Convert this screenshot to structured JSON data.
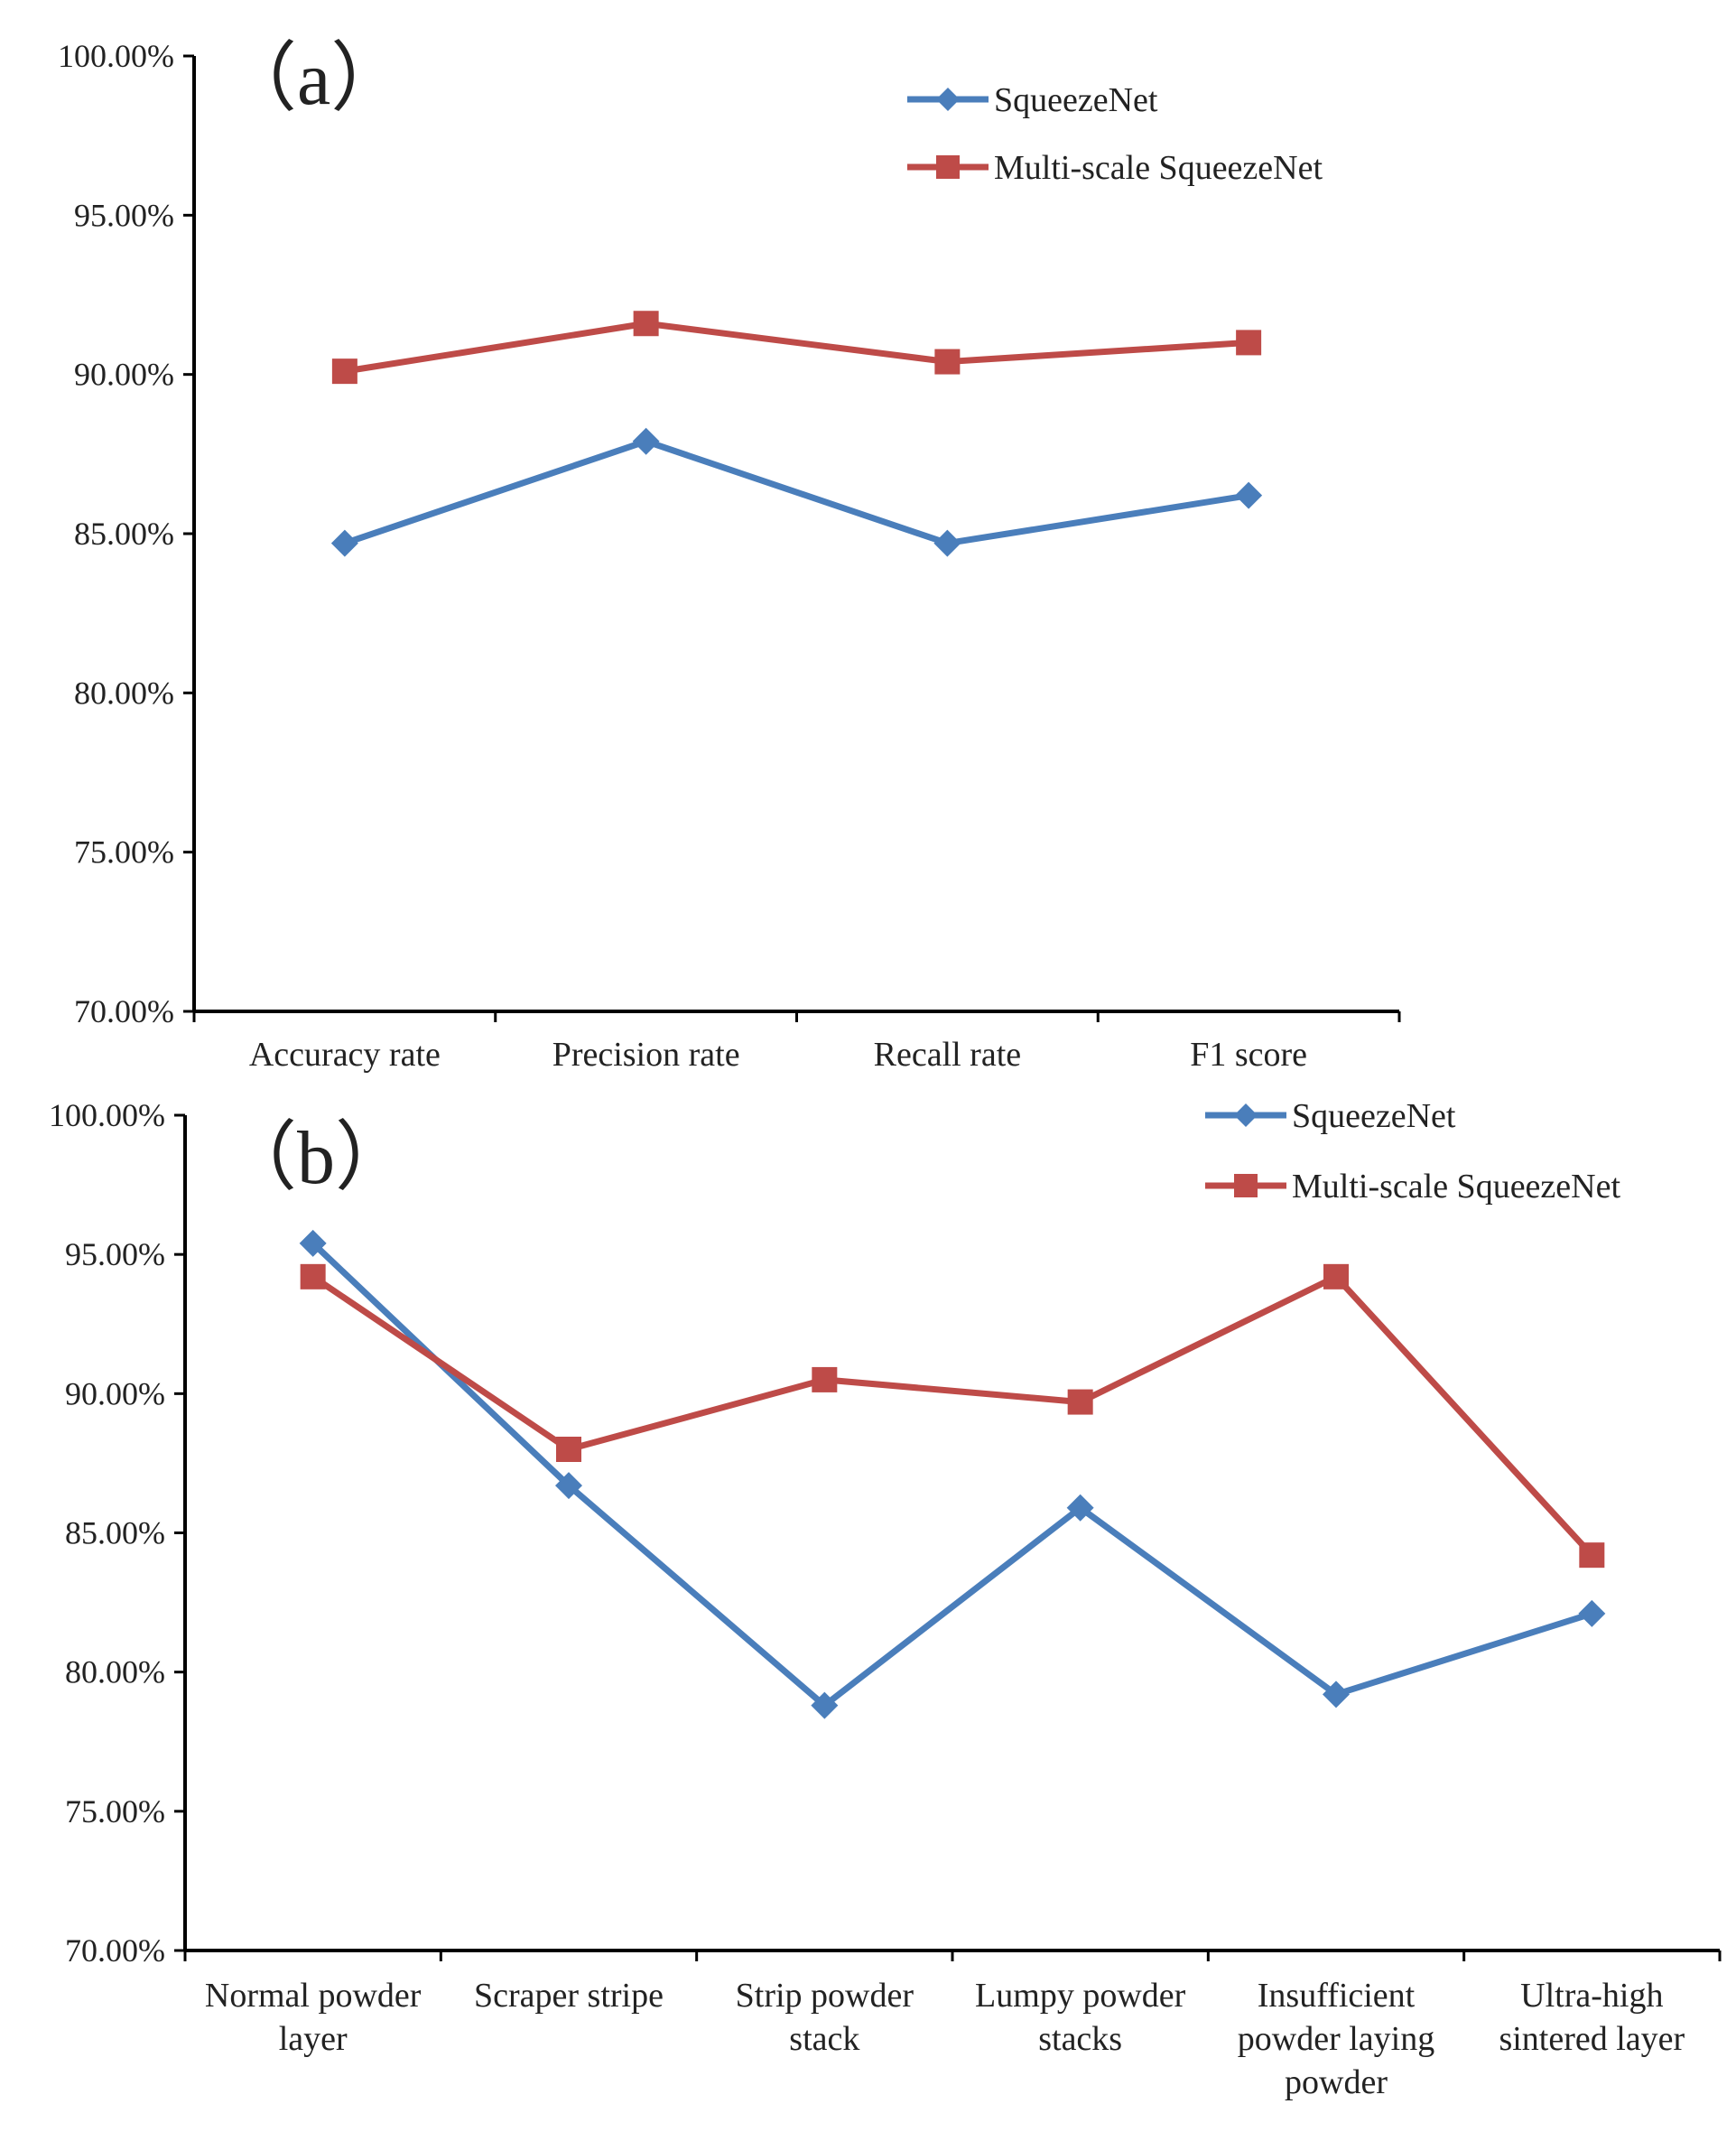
{
  "colors": {
    "squeezenet": "#4a7ebb",
    "multiscale": "#be4b48",
    "axis": "#000000"
  },
  "chart_data": [
    {
      "type": "line",
      "panel_label": "（a）",
      "categories": [
        {
          "lines": [
            "Accuracy rate"
          ]
        },
        {
          "lines": [
            "Precision rate"
          ]
        },
        {
          "lines": [
            "Recall rate"
          ]
        },
        {
          "lines": [
            "F1 score"
          ]
        }
      ],
      "series": [
        {
          "name": "SqueezeNet",
          "marker": "diamond",
          "color": "#4a7ebb",
          "values": [
            84.7,
            87.9,
            84.7,
            86.2
          ]
        },
        {
          "name": "Multi-scale SqueezeNet",
          "marker": "square",
          "color": "#be4b48",
          "values": [
            90.1,
            91.6,
            90.4,
            91.0
          ]
        }
      ],
      "ylim": [
        70,
        100
      ],
      "yticks": [
        "70.00%",
        "75.00%",
        "80.00%",
        "85.00%",
        "90.00%",
        "95.00%",
        "100.00%"
      ],
      "grid": false,
      "legend": "top-right"
    },
    {
      "type": "line",
      "panel_label": "（b）",
      "categories": [
        {
          "lines": [
            "Normal powder",
            "layer"
          ]
        },
        {
          "lines": [
            "Scraper stripe"
          ]
        },
        {
          "lines": [
            "Strip powder",
            "stack"
          ]
        },
        {
          "lines": [
            "Lumpy powder",
            "stacks"
          ]
        },
        {
          "lines": [
            "Insufficient",
            "powder laying",
            "powder"
          ]
        },
        {
          "lines": [
            "Ultra-high",
            "sintered layer"
          ]
        }
      ],
      "series": [
        {
          "name": "SqueezeNet",
          "marker": "diamond",
          "color": "#4a7ebb",
          "values": [
            95.4,
            86.7,
            78.8,
            85.9,
            79.2,
            82.1
          ]
        },
        {
          "name": "Multi-scale SqueezeNet",
          "marker": "square",
          "color": "#be4b48",
          "values": [
            94.2,
            88.0,
            90.5,
            89.7,
            94.2,
            84.2
          ]
        }
      ],
      "ylim": [
        70,
        100
      ],
      "yticks": [
        "70.00%",
        "75.00%",
        "80.00%",
        "85.00%",
        "90.00%",
        "95.00%",
        "100.00%"
      ],
      "grid": false,
      "legend": "top-right"
    }
  ]
}
